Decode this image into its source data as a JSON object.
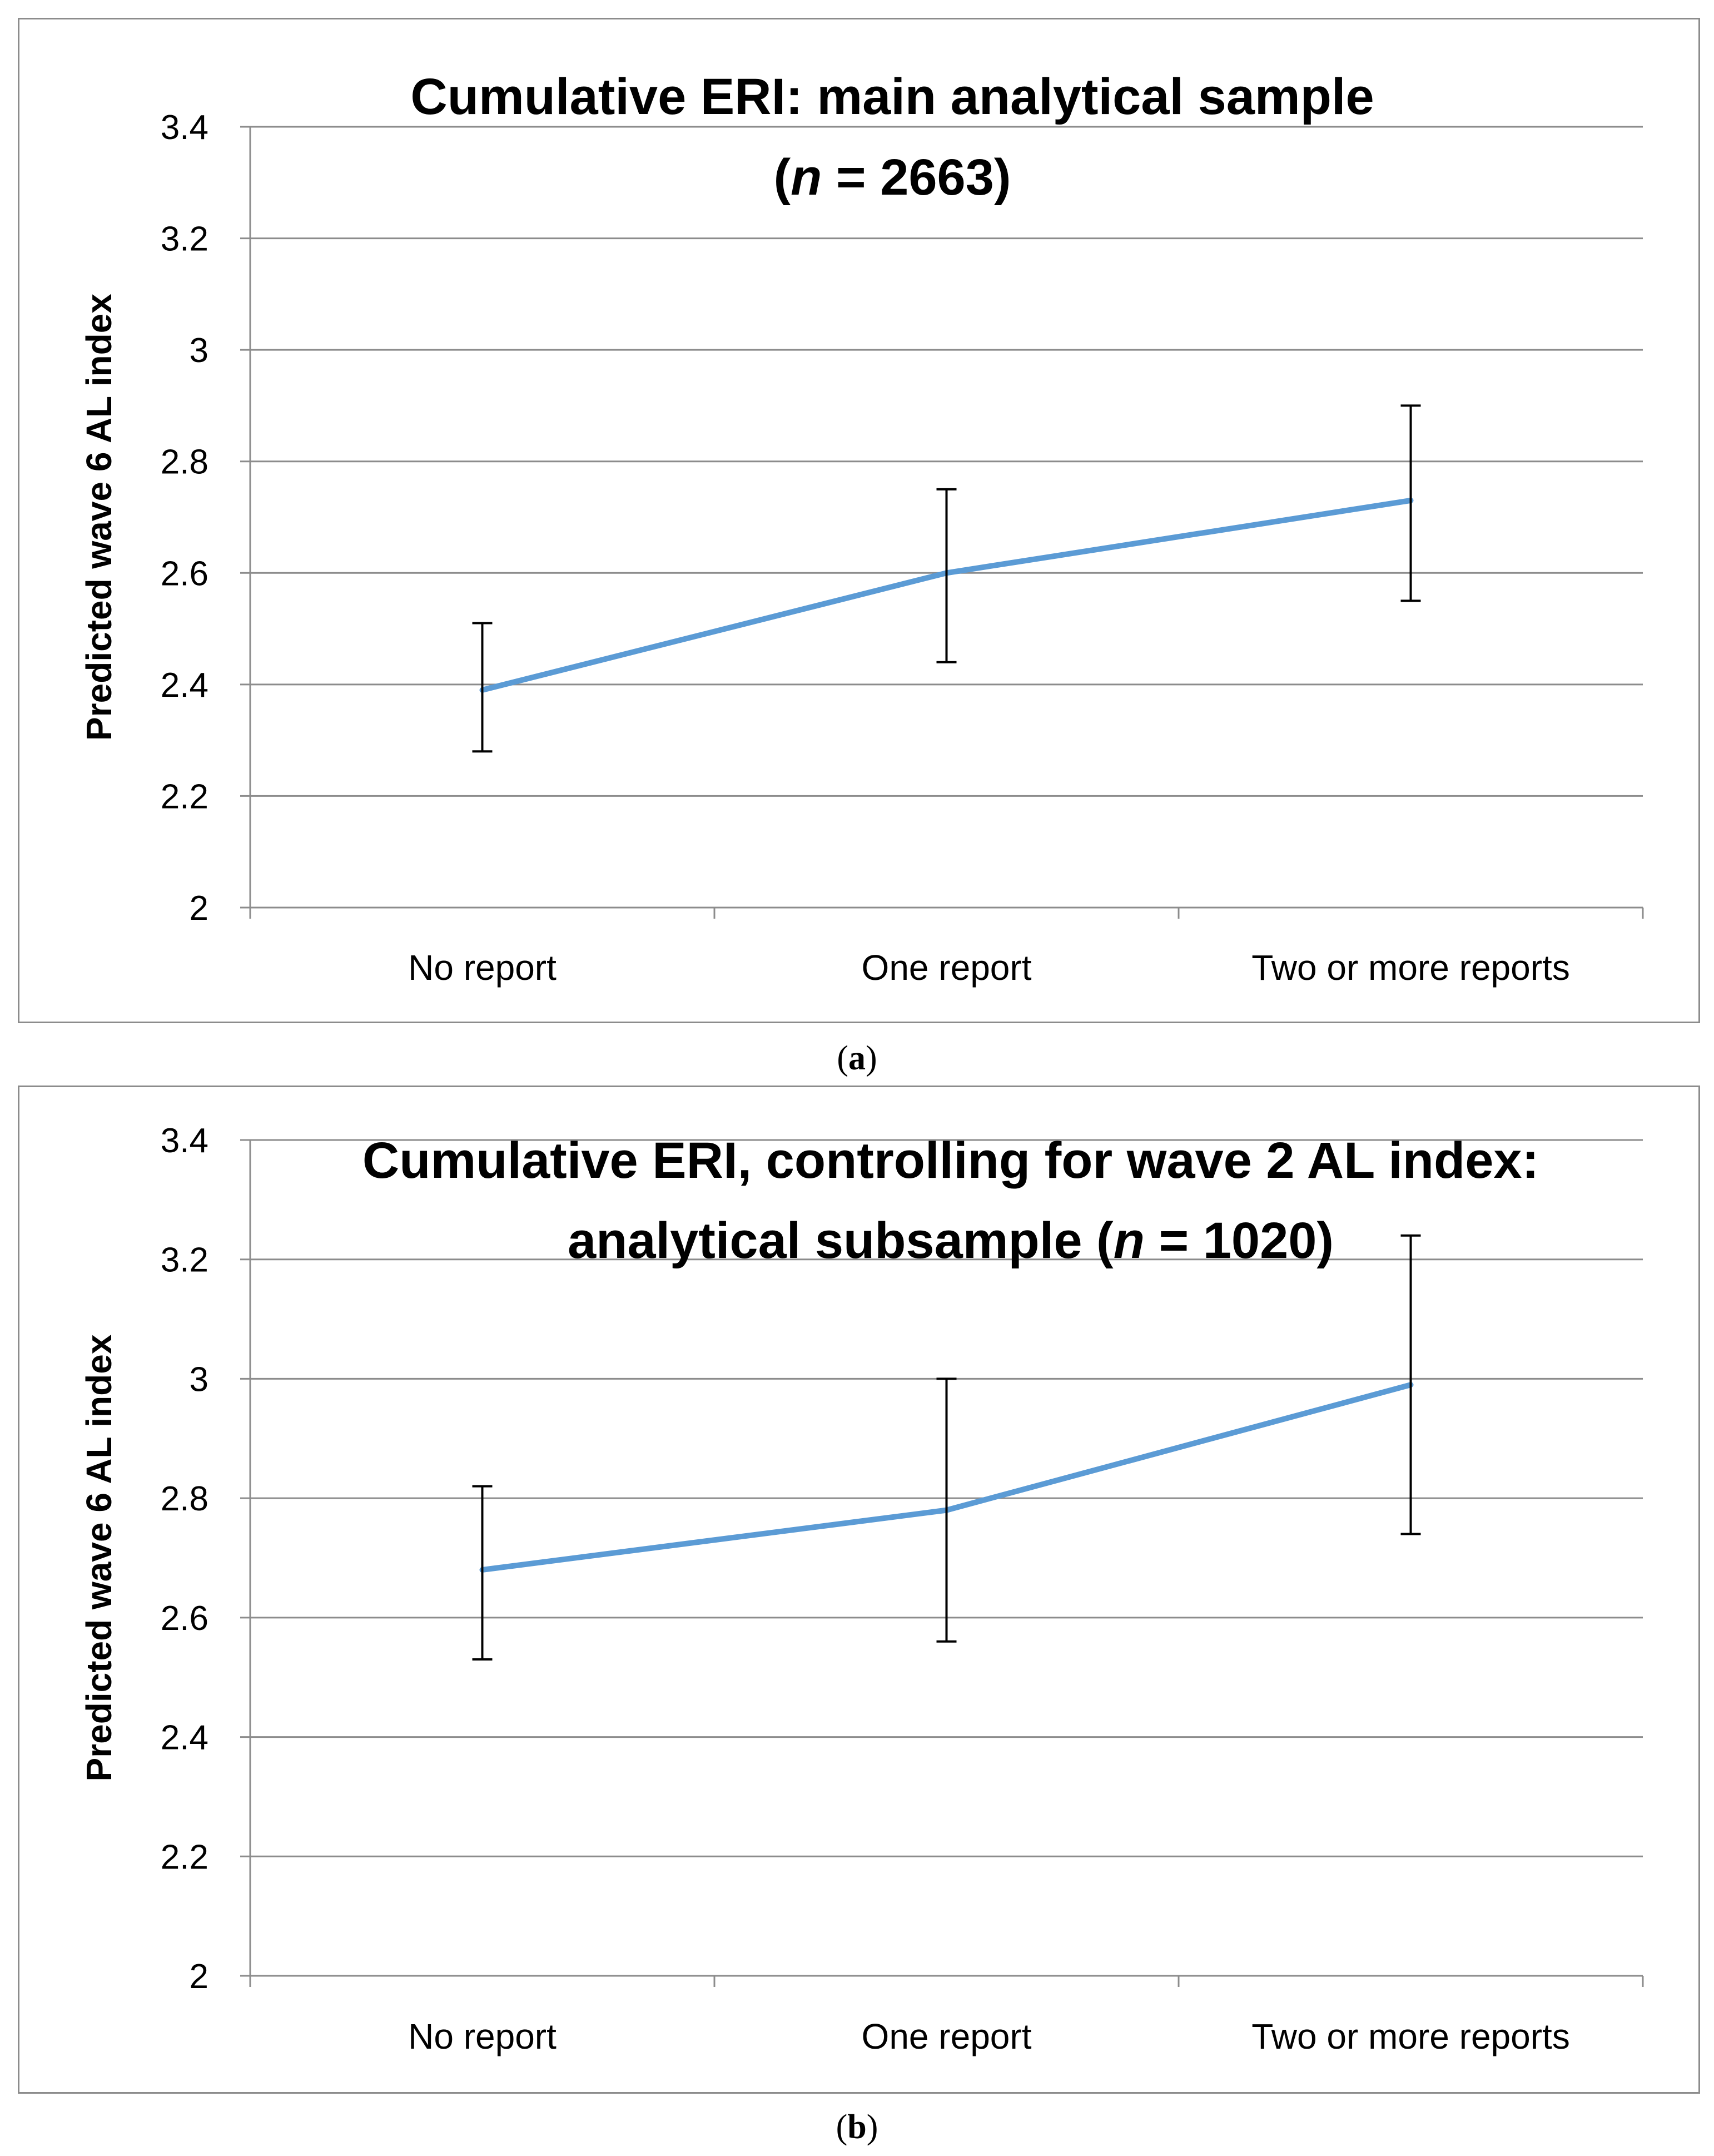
{
  "chart_data": [
    {
      "panel": "a",
      "type": "line",
      "title": "Cumulative ERI: main analytical sample",
      "title_line2_prefix": "(",
      "title_line2_italic": "n",
      "title_line2_suffix": " = 2663)",
      "xlabel": "",
      "ylabel": "Predicted wave 6 AL index",
      "categories": [
        "No report",
        "One report",
        "Two or more reports"
      ],
      "series": [
        {
          "name": "Predicted wave 6 AL index",
          "values": [
            2.39,
            2.6,
            2.73
          ],
          "error_low": [
            2.28,
            2.44,
            2.55
          ],
          "error_high": [
            2.51,
            2.75,
            2.9
          ],
          "color": "#5b9bd5"
        }
      ],
      "ylim": [
        2,
        3.4
      ],
      "yticks": [
        2,
        2.2,
        2.4,
        2.6,
        2.8,
        3,
        3.2,
        3.4
      ],
      "ytick_labels": [
        "2",
        "2.2",
        "2.4",
        "2.6",
        "2.8",
        "3",
        "3.2",
        "3.4"
      ],
      "grid": true
    },
    {
      "panel": "b",
      "type": "line",
      "title": "Cumulative ERI, controlling for wave 2 AL index:",
      "title_line2_prefix": "analytical subsample (",
      "title_line2_italic": "n",
      "title_line2_suffix": " = 1020)",
      "xlabel": "",
      "ylabel": "Predicted wave 6 AL index",
      "categories": [
        "No report",
        "One report",
        "Two or more reports"
      ],
      "series": [
        {
          "name": "Predicted wave 6 AL index",
          "values": [
            2.68,
            2.78,
            2.99
          ],
          "error_low": [
            2.53,
            2.56,
            2.74
          ],
          "error_high": [
            2.82,
            3.0,
            3.24
          ],
          "color": "#5b9bd5"
        }
      ],
      "ylim": [
        2,
        3.4
      ],
      "yticks": [
        2,
        2.2,
        2.4,
        2.6,
        2.8,
        3,
        3.2,
        3.4
      ],
      "ytick_labels": [
        "2",
        "2.2",
        "2.4",
        "2.6",
        "2.8",
        "3",
        "3.2",
        "3.4"
      ],
      "grid": true
    }
  ],
  "captions": {
    "a": "a",
    "b": "b"
  },
  "colors": {
    "gridline": "#8c8c8c",
    "axis": "#8c8c8c",
    "line": "#5b9bd5",
    "errorbar": "#000000"
  }
}
